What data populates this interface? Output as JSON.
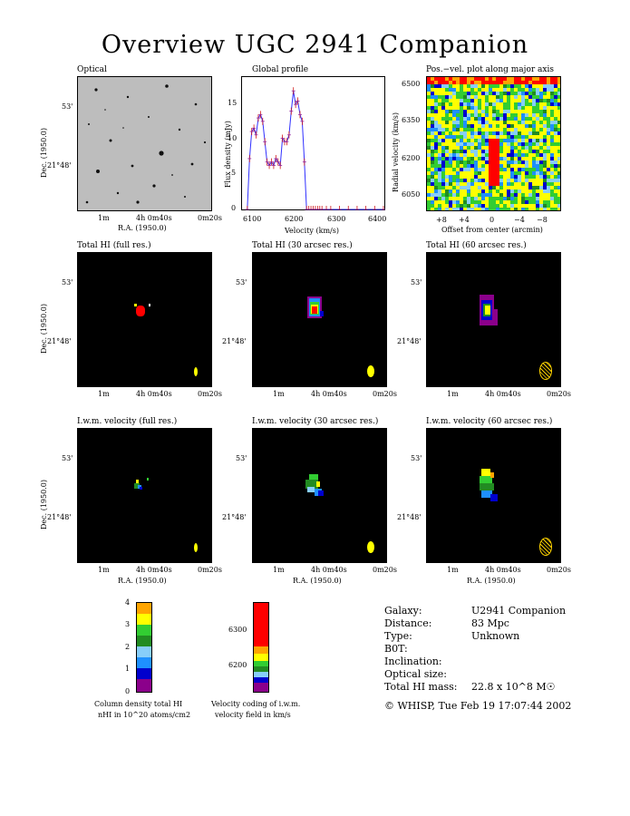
{
  "title": "Overview UGC 2941 Companion",
  "colors": {
    "ramp": [
      "#8b008b",
      "#0000cd",
      "#1e90ff",
      "#87cefa",
      "#228b22",
      "#32cd32",
      "#ffff00",
      "#ffa500",
      "#ff0000"
    ]
  },
  "panels": {
    "optical": {
      "title": "Optical"
    },
    "profile": {
      "title": "Global profile",
      "xlabel": "Velocity (km/s)",
      "ylabel": "Flux density (mJy)",
      "xticks": [
        "6100",
        "6200",
        "6300",
        "6400"
      ],
      "yticks": [
        "0",
        "5",
        "10",
        "15"
      ]
    },
    "pv": {
      "title": "Pos.−vel. plot along major axis",
      "xlabel": "Offset from center (arcmin)",
      "ylabel": "Radial velocity (km/s)",
      "xticks": [
        "+8",
        "+4",
        "0",
        "−4",
        "−8"
      ],
      "yticks": [
        "6500",
        "6350",
        "6200",
        "6050"
      ]
    },
    "total_full": {
      "title": "Total HI (full res.)"
    },
    "total_30": {
      "title": "Total HI (30 arcsec res.)"
    },
    "total_60": {
      "title": "Total HI (60 arcsec res.)"
    },
    "vel_full": {
      "title": "I.w.m. velocity (full res.)"
    },
    "vel_30": {
      "title": "I.w.m. velocity (30 arcsec res.)"
    },
    "vel_60": {
      "title": "I.w.m. velocity (60 arcsec res.)"
    }
  },
  "map_axes": {
    "ra_label": "R.A. (1950.0)",
    "dec_label": "Dec. (1950.0)",
    "ra_ticks": [
      "1m",
      "4h 0m40s",
      "0m20s"
    ],
    "dec_ticks": [
      "53'",
      "21°48'"
    ]
  },
  "colorbars": {
    "density": {
      "ticks": [
        "0",
        "1",
        "2",
        "3",
        "4"
      ],
      "caption1": "Column density total HI",
      "caption2": "nHI in 10^20 atoms/cm2"
    },
    "velocity": {
      "ticks": [
        "6200",
        "6300"
      ],
      "caption1": "Velocity coding of i.w.m.",
      "caption2": "velocity field in km/s"
    }
  },
  "info": {
    "galaxy_label": "Galaxy:",
    "galaxy": "U2941 Companion",
    "distance_label": "Distance:",
    "distance": "83 Mpc",
    "type_label": "Type:",
    "type": "Unknown",
    "bt_label": "B0T:",
    "incl_label": "Inclination:",
    "optsize_label": "Optical size:",
    "mass_label": "Total HI mass:",
    "mass": "22.8 x 10^8 M☉",
    "footer": "© WHISP, Tue Feb 19 17:07:44 2002"
  },
  "chart_data": {
    "type": "line",
    "title": "Global profile",
    "xlabel": "Velocity (km/s)",
    "ylabel": "Flux density (mJy)",
    "xlim": [
      6100,
      6420
    ],
    "ylim": [
      0,
      19
    ],
    "x": [
      6110,
      6115,
      6120,
      6125,
      6130,
      6135,
      6140,
      6145,
      6150,
      6155,
      6160,
      6165,
      6170,
      6175,
      6180,
      6185,
      6190,
      6195,
      6200,
      6205,
      6210,
      6215,
      6220,
      6225,
      6230,
      6235,
      6240,
      6245,
      6250,
      6255,
      6260,
      6265,
      6270,
      6275,
      6280,
      6290,
      6300,
      6320,
      6340,
      6360,
      6380,
      6400,
      6420
    ],
    "series": [
      {
        "values": [
          0,
          7.5,
          11.5,
          12,
          11,
          13.5,
          14,
          13,
          10,
          7,
          6.5,
          7,
          6.5,
          7.5,
          7,
          6.5,
          10.5,
          10,
          10,
          11,
          14.5,
          17.5,
          15.5,
          16,
          14,
          13,
          7,
          0,
          0,
          0,
          0,
          0,
          0,
          0,
          0,
          0,
          0,
          0,
          0,
          0,
          0,
          0,
          0
        ]
      }
    ]
  }
}
